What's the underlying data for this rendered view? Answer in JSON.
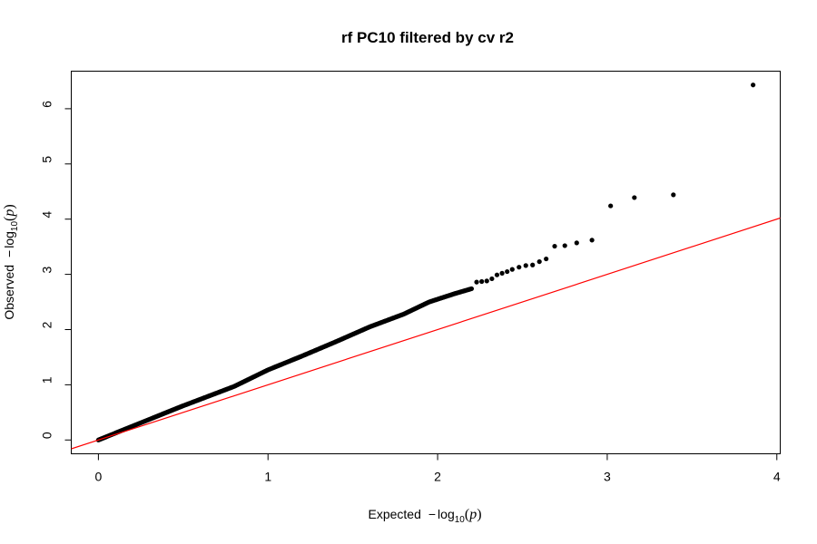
{
  "chart_data": {
    "type": "scatter",
    "title": "rf PC10 filtered by cv r2",
    "xlabel": {
      "prefix": "Expected",
      "minus": "−",
      "log": "log",
      "sub": "10",
      "open": "(",
      "var": "p",
      "close": ")"
    },
    "ylabel": {
      "prefix": "Observed",
      "minus": "−",
      "log": "log",
      "sub": "10",
      "open": "(",
      "var": "p",
      "close": ")"
    },
    "xlim": [
      -0.16,
      4.02
    ],
    "ylim": [
      -0.25,
      6.68
    ],
    "x_ticks": [
      0,
      1,
      2,
      3,
      4
    ],
    "x_tick_labels": [
      "0",
      "1",
      "2",
      "3",
      "4"
    ],
    "y_ticks": [
      0,
      1,
      2,
      3,
      4,
      5,
      6
    ],
    "y_tick_labels": [
      "0",
      "1",
      "2",
      "3",
      "4",
      "5",
      "6"
    ],
    "reference_line": {
      "intercept": 0,
      "slope": 1,
      "color": "#ff0000"
    },
    "point_color": "#000000",
    "curve_anchors": [
      [
        0,
        0
      ],
      [
        0.2,
        0.25
      ],
      [
        0.5,
        0.62
      ],
      [
        0.8,
        0.97
      ],
      [
        1.0,
        1.27
      ],
      [
        1.2,
        1.52
      ],
      [
        1.4,
        1.78
      ],
      [
        1.6,
        2.05
      ],
      [
        1.8,
        2.28
      ],
      [
        1.95,
        2.5
      ],
      [
        2.1,
        2.65
      ],
      [
        2.2,
        2.74
      ]
    ],
    "curve_step": 0.005,
    "tail_points": [
      [
        2.23,
        2.86
      ],
      [
        2.26,
        2.87
      ],
      [
        2.29,
        2.88
      ],
      [
        2.32,
        2.92
      ],
      [
        2.35,
        2.99
      ],
      [
        2.38,
        3.02
      ],
      [
        2.41,
        3.05
      ],
      [
        2.44,
        3.09
      ],
      [
        2.48,
        3.13
      ],
      [
        2.52,
        3.16
      ],
      [
        2.56,
        3.17
      ],
      [
        2.6,
        3.23
      ],
      [
        2.64,
        3.28
      ],
      [
        2.69,
        3.51
      ],
      [
        2.75,
        3.52
      ],
      [
        2.82,
        3.57
      ],
      [
        2.91,
        3.62
      ],
      [
        3.02,
        4.24
      ],
      [
        3.16,
        4.39
      ],
      [
        3.39,
        4.44
      ],
      [
        3.86,
        6.43
      ]
    ]
  }
}
